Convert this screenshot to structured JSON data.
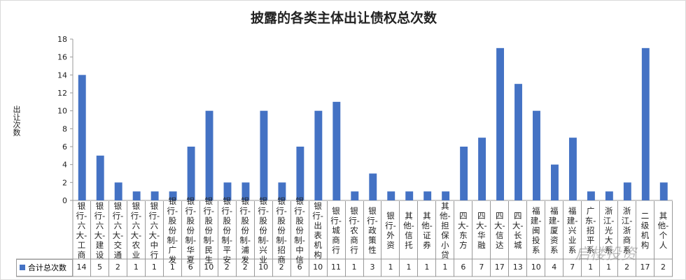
{
  "chart_data": {
    "type": "bar",
    "title": "披露的各类主体出让债权总次数",
    "ylabel": "出让次数",
    "ylim": [
      0,
      18
    ],
    "yticks": [
      0,
      2,
      4,
      6,
      8,
      10,
      12,
      14,
      16,
      18
    ],
    "grid": false,
    "color": "#4472c4",
    "categories": [
      "银行-六大-工商",
      "银行-六大-建设",
      "银行-六大-交通",
      "银行-六大-农业",
      "银行-六大-中行",
      "银行-股份制-广发",
      "银行-股份制-华夏",
      "银行-股份制-民生",
      "银行-股份制-平安",
      "银行-股份制-浦发",
      "银行-股份制-兴业",
      "银行-股份制-招商",
      "银行-股份制-中信",
      "银行-出表机构",
      "银行-城商行",
      "银行-农商行",
      "银行-政策性",
      "银行-外资",
      "其他-信托",
      "其他-证券",
      "其他-担保小贷",
      "四大-东方",
      "四大-华融",
      "四大-信达",
      "四大-长城",
      "福建-闽投系",
      "福建-厦资系",
      "福建-兴业系",
      "广东-招平系",
      "浙江-光大系",
      "浙江-浙商系",
      "二级机构",
      "其他-个人"
    ],
    "series": [
      {
        "name": "合计总次数",
        "values": [
          14,
          5,
          2,
          1,
          1,
          1,
          6,
          10,
          2,
          2,
          10,
          2,
          6,
          10,
          11,
          1,
          3,
          1,
          1,
          1,
          1,
          6,
          7,
          17,
          13,
          10,
          4,
          7,
          1,
          1,
          2,
          17,
          2
        ]
      }
    ]
  },
  "watermark": "启楼投资"
}
